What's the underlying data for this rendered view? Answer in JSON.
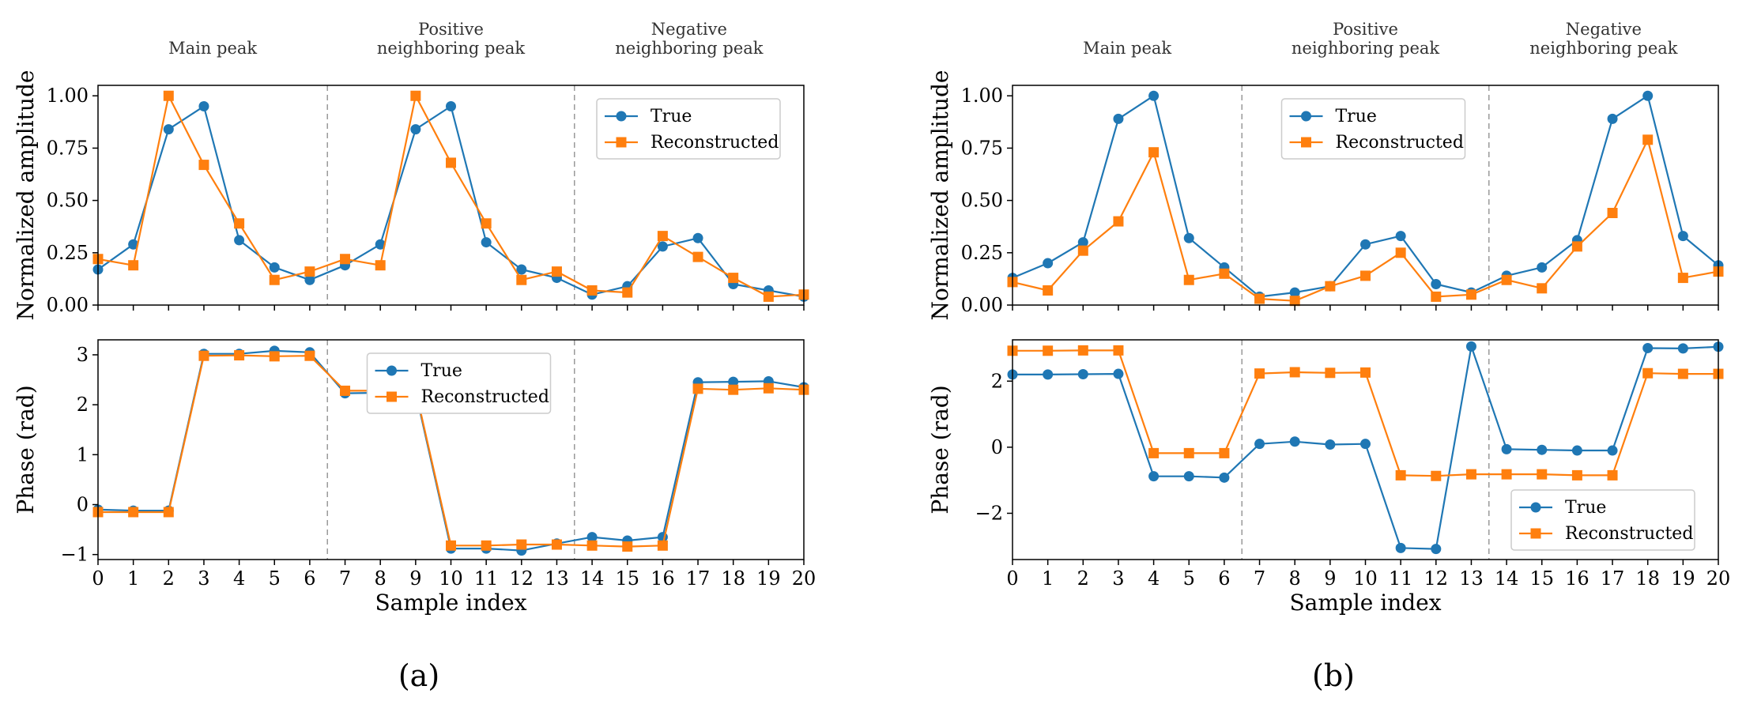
{
  "colors": {
    "true": "#1f77b4",
    "reconstructed": "#ff7f0e"
  },
  "chart_data": [
    {
      "panel": "(a)",
      "type": "line",
      "sections": [
        "Main peak",
        "Positive\nneighboring peak",
        "Negative\nneighboring peak"
      ],
      "separators_at": [
        6.5,
        13.5
      ],
      "x": [
        0,
        1,
        2,
        3,
        4,
        5,
        6,
        7,
        8,
        9,
        10,
        11,
        12,
        13,
        14,
        15,
        16,
        17,
        18,
        19,
        20
      ],
      "xlabel": "Sample index",
      "subplots": [
        {
          "kind": "amplitude",
          "ylabel": "Normalized amplitude",
          "ylim": [
            0,
            1.05
          ],
          "yticks": [
            0,
            0.25,
            0.5,
            0.75,
            1
          ],
          "yticklabels": [
            "0.00",
            "0.25",
            "0.50",
            "0.75",
            "1.00"
          ],
          "legend_position": "upper right",
          "series": [
            {
              "name": "True",
              "marker": "circle",
              "values": [
                0.17,
                0.29,
                0.84,
                0.95,
                0.31,
                0.18,
                0.12,
                0.19,
                0.29,
                0.84,
                0.95,
                0.3,
                0.17,
                0.13,
                0.05,
                0.09,
                0.28,
                0.32,
                0.1,
                0.07,
                0.04
              ]
            },
            {
              "name": "Reconstructed",
              "marker": "square",
              "values": [
                0.22,
                0.19,
                1.0,
                0.67,
                0.39,
                0.12,
                0.16,
                0.22,
                0.19,
                1.0,
                0.68,
                0.39,
                0.12,
                0.16,
                0.07,
                0.06,
                0.33,
                0.23,
                0.13,
                0.04,
                0.05
              ]
            }
          ]
        },
        {
          "kind": "phase",
          "ylabel": "Phase (rad)",
          "ylim": [
            -1.1,
            3.3
          ],
          "yticks": [
            -1,
            0,
            1,
            2,
            3
          ],
          "yticklabels": [
            "−1",
            "0",
            "1",
            "2",
            "3"
          ],
          "legend_position": "upper center",
          "series": [
            {
              "name": "True",
              "marker": "circle",
              "values": [
                -0.1,
                -0.12,
                -0.12,
                3.02,
                3.02,
                3.08,
                3.05,
                2.23,
                2.24,
                2.25,
                -0.88,
                -0.88,
                -0.92,
                -0.78,
                -0.65,
                -0.72,
                -0.65,
                2.45,
                2.46,
                2.47,
                2.35
              ]
            },
            {
              "name": "Reconstructed",
              "marker": "square",
              "values": [
                -0.15,
                -0.15,
                -0.15,
                2.98,
                2.99,
                2.97,
                2.98,
                2.28,
                2.28,
                2.29,
                -0.82,
                -0.82,
                -0.8,
                -0.8,
                -0.82,
                -0.84,
                -0.82,
                2.32,
                2.3,
                2.33,
                2.3
              ]
            }
          ]
        }
      ]
    },
    {
      "panel": "(b)",
      "type": "line",
      "sections": [
        "Main peak",
        "Positive\nneighboring peak",
        "Negative\nneighboring peak"
      ],
      "separators_at": [
        6.5,
        13.5
      ],
      "x": [
        0,
        1,
        2,
        3,
        4,
        5,
        6,
        7,
        8,
        9,
        10,
        11,
        12,
        13,
        14,
        15,
        16,
        17,
        18,
        19,
        20
      ],
      "xlabel": "Sample index",
      "subplots": [
        {
          "kind": "amplitude",
          "ylabel": "Normalized amplitude",
          "ylim": [
            0,
            1.05
          ],
          "yticks": [
            0,
            0.25,
            0.5,
            0.75,
            1
          ],
          "yticklabels": [
            "0.00",
            "0.25",
            "0.50",
            "0.75",
            "1.00"
          ],
          "legend_position": "upper center",
          "series": [
            {
              "name": "True",
              "marker": "circle",
              "values": [
                0.13,
                0.2,
                0.3,
                0.89,
                1.0,
                0.32,
                0.18,
                0.04,
                0.06,
                0.09,
                0.29,
                0.33,
                0.1,
                0.06,
                0.14,
                0.18,
                0.31,
                0.89,
                1.0,
                0.33,
                0.19
              ]
            },
            {
              "name": "Reconstructed",
              "marker": "square",
              "values": [
                0.11,
                0.07,
                0.26,
                0.4,
                0.73,
                0.12,
                0.15,
                0.03,
                0.02,
                0.09,
                0.14,
                0.25,
                0.04,
                0.05,
                0.12,
                0.08,
                0.28,
                0.44,
                0.79,
                0.13,
                0.16
              ]
            }
          ]
        },
        {
          "kind": "phase",
          "ylabel": "Phase (rad)",
          "ylim": [
            -3.4,
            3.25
          ],
          "yticks": [
            -2,
            0,
            2
          ],
          "yticklabels": [
            "−2",
            "0",
            "2"
          ],
          "legend_position": "lower right",
          "series": [
            {
              "name": "True",
              "marker": "circle",
              "values": [
                2.2,
                2.2,
                2.21,
                2.22,
                -0.88,
                -0.88,
                -0.92,
                0.1,
                0.17,
                0.08,
                0.1,
                -3.05,
                -3.08,
                3.05,
                -0.06,
                -0.08,
                -0.1,
                -0.1,
                3.0,
                2.99,
                3.04
              ]
            },
            {
              "name": "Reconstructed",
              "marker": "square",
              "values": [
                2.92,
                2.92,
                2.93,
                2.93,
                -0.18,
                -0.18,
                -0.18,
                2.23,
                2.27,
                2.25,
                2.26,
                -0.85,
                -0.87,
                -0.82,
                -0.82,
                -0.82,
                -0.85,
                -0.85,
                2.24,
                2.22,
                2.22
              ]
            }
          ]
        }
      ]
    }
  ]
}
